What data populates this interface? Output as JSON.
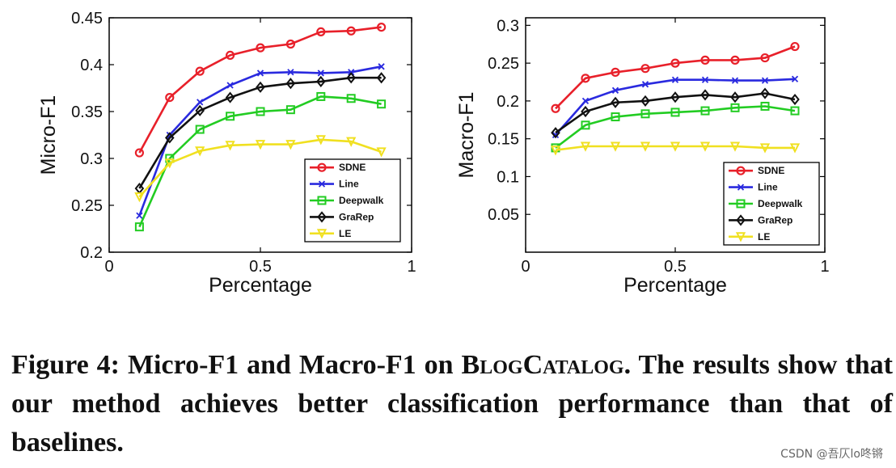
{
  "chart_data": [
    {
      "type": "line",
      "xlabel": "Percentage",
      "ylabel": "Micro-F1",
      "xlim": [
        0,
        1
      ],
      "ylim": [
        0.2,
        0.45
      ],
      "xticks": [
        "0",
        "0.5",
        "1"
      ],
      "yticks": [
        "0.2",
        "0.25",
        "0.3",
        "0.35",
        "0.4",
        "0.45"
      ],
      "legend_position": "bottom-right",
      "x": [
        0.1,
        0.2,
        0.3,
        0.4,
        0.5,
        0.6,
        0.7,
        0.8,
        0.9
      ],
      "series": [
        {
          "name": "SDNE",
          "color": "#e8202a",
          "marker": "circle",
          "values": [
            0.306,
            0.365,
            0.393,
            0.41,
            0.418,
            0.422,
            0.435,
            0.436,
            0.44
          ]
        },
        {
          "name": "Line",
          "color": "#2a2adf",
          "marker": "x",
          "values": [
            0.239,
            0.325,
            0.36,
            0.378,
            0.391,
            0.392,
            0.391,
            0.392,
            0.398
          ]
        },
        {
          "name": "Deepwalk",
          "color": "#22cc22",
          "marker": "square",
          "values": [
            0.227,
            0.3,
            0.331,
            0.345,
            0.35,
            0.352,
            0.366,
            0.364,
            0.358
          ]
        },
        {
          "name": "GraRep",
          "color": "#111111",
          "marker": "diamond",
          "values": [
            0.268,
            0.322,
            0.351,
            0.365,
            0.376,
            0.38,
            0.382,
            0.386,
            0.386
          ]
        },
        {
          "name": "LE",
          "color": "#f0e020",
          "marker": "triangle",
          "values": [
            0.259,
            0.295,
            0.308,
            0.314,
            0.315,
            0.315,
            0.32,
            0.318,
            0.307
          ]
        }
      ]
    },
    {
      "type": "line",
      "xlabel": "Percentage",
      "ylabel": "Macro-F1",
      "xlim": [
        0,
        1
      ],
      "ylim": [
        0,
        0.31
      ],
      "xticks": [
        "0",
        "0.5",
        "1"
      ],
      "yticks": [
        "0.05",
        "0.1",
        "0.15",
        "0.2",
        "0.25",
        "0.3"
      ],
      "legend_position": "bottom-right",
      "x": [
        0.1,
        0.2,
        0.3,
        0.4,
        0.5,
        0.6,
        0.7,
        0.8,
        0.9
      ],
      "series": [
        {
          "name": "SDNE",
          "color": "#e8202a",
          "marker": "circle",
          "values": [
            0.19,
            0.23,
            0.238,
            0.243,
            0.25,
            0.254,
            0.254,
            0.257,
            0.272
          ]
        },
        {
          "name": "Line",
          "color": "#2a2adf",
          "marker": "x",
          "values": [
            0.155,
            0.2,
            0.214,
            0.222,
            0.228,
            0.228,
            0.227,
            0.227,
            0.229
          ]
        },
        {
          "name": "Deepwalk",
          "color": "#22cc22",
          "marker": "square",
          "values": [
            0.138,
            0.168,
            0.179,
            0.183,
            0.185,
            0.187,
            0.191,
            0.193,
            0.187
          ]
        },
        {
          "name": "GraRep",
          "color": "#111111",
          "marker": "diamond",
          "values": [
            0.158,
            0.186,
            0.198,
            0.2,
            0.205,
            0.208,
            0.205,
            0.21,
            0.202
          ]
        },
        {
          "name": "LE",
          "color": "#f0e020",
          "marker": "triangle",
          "values": [
            0.135,
            0.14,
            0.14,
            0.14,
            0.14,
            0.14,
            0.14,
            0.138,
            0.138
          ]
        }
      ]
    }
  ],
  "caption": {
    "prefix": "Figure 4: Micro-F1 and Macro-F1 on ",
    "dataset": "BlogCatalog",
    "suffix": ". The results show that our method achieves better classification performance than that of baselines."
  },
  "watermark": "CSDN @吾仄lo咚锵"
}
